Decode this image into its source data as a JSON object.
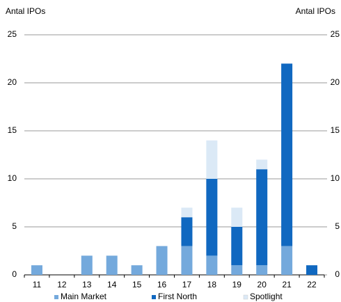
{
  "chart_data": {
    "type": "bar",
    "stacked": true,
    "ylabel": "Antal IPOs",
    "y2label": "Antal IPOs",
    "categories": [
      "11",
      "12",
      "13",
      "14",
      "15",
      "16",
      "17",
      "18",
      "19",
      "20",
      "21",
      "22"
    ],
    "series": [
      {
        "name": "Main Market",
        "color": "#74a9dc",
        "values": [
          1,
          0,
          2,
          2,
          1,
          3,
          3,
          2,
          1,
          1,
          3,
          0
        ]
      },
      {
        "name": "First North",
        "color": "#1068c0",
        "values": [
          0,
          0,
          0,
          0,
          0,
          0,
          3,
          8,
          4,
          10,
          19,
          1
        ]
      },
      {
        "name": "Spotlight",
        "color": "#dbe9f6",
        "values": [
          0,
          0,
          0,
          0,
          0,
          0,
          1,
          4,
          2,
          1,
          0,
          0
        ]
      }
    ],
    "ylim": [
      0,
      25
    ],
    "yticks": [
      0,
      5,
      10,
      15,
      20,
      25
    ],
    "y2lim": [
      0,
      25
    ],
    "y2ticks": [
      0,
      5,
      10,
      15,
      20,
      25
    ],
    "grid": true,
    "legend": "bottom"
  }
}
